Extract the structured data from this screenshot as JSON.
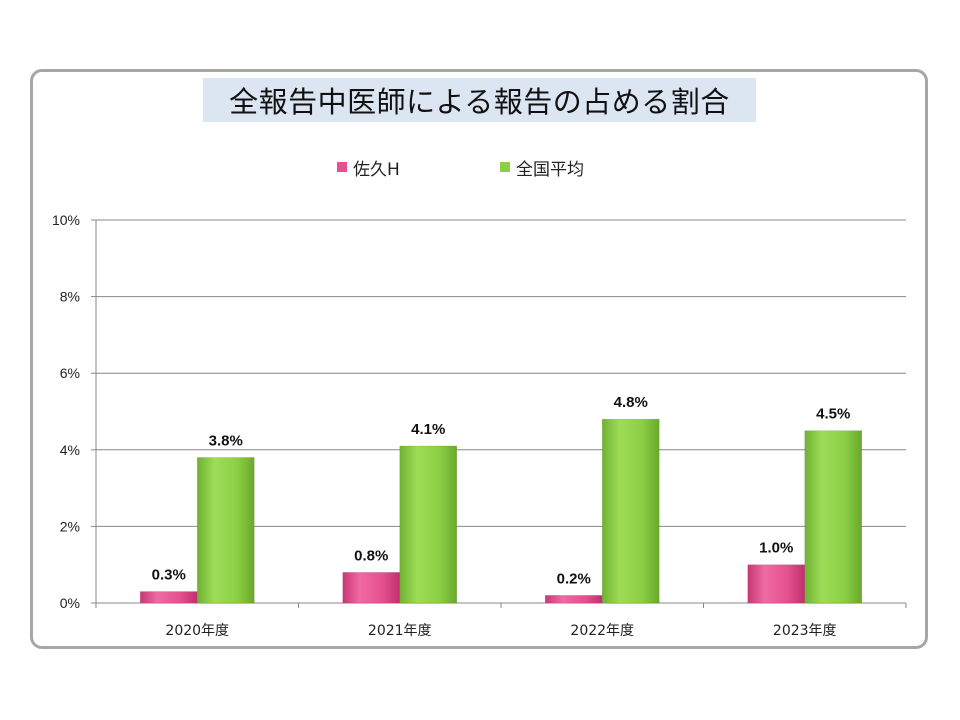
{
  "colors": {
    "series_1": "#e5508f",
    "series_2": "#8ccf45",
    "title_background": "#dce6f2",
    "frame_border": "#a6a6a6",
    "gridline": "#888888"
  },
  "chart_data": {
    "type": "bar",
    "title": "全報告中医師による報告の占める割合",
    "categories": [
      "2020年度",
      "2021年度",
      "2022年度",
      "2023年度"
    ],
    "series": [
      {
        "name": "佐久H",
        "values": [
          0.3,
          0.8,
          0.2,
          1.0
        ],
        "labels": [
          "0.3%",
          "0.8%",
          "0.2%",
          "1.0%"
        ]
      },
      {
        "name": "全国平均",
        "values": [
          3.8,
          4.1,
          4.8,
          4.5
        ],
        "labels": [
          "3.8%",
          "4.1%",
          "4.8%",
          "4.5%"
        ]
      }
    ],
    "ylim": [
      0,
      10
    ],
    "yticks": [
      0,
      2,
      4,
      6,
      8,
      10
    ],
    "ytick_labels": [
      "0%",
      "2%",
      "4%",
      "6%",
      "8%",
      "10%"
    ],
    "grid": true,
    "legend_position": "top-center",
    "xlabel": "",
    "ylabel": ""
  }
}
